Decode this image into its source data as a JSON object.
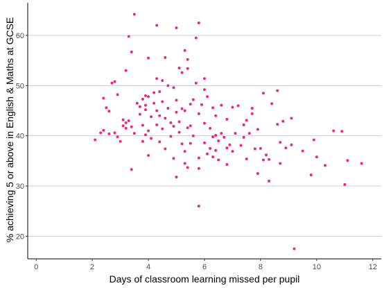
{
  "chart_data": {
    "type": "scatter",
    "title": "",
    "xlabel": "Days of classroom learning missed per pupil",
    "ylabel": "% achieving 5 or above in English & Maths at GCSE",
    "xlim": [
      -0.3,
      12.3
    ],
    "ylim": [
      15.5,
      66.5
    ],
    "x_ticks": [
      0,
      2,
      4,
      6,
      8,
      10,
      12
    ],
    "y_ticks": [
      20,
      30,
      40,
      50,
      60
    ],
    "grid": "horizontal major gridlines",
    "point_color": "#E7298A",
    "points": [
      {
        "x": 2.1,
        "y": 39.2
      },
      {
        "x": 2.3,
        "y": 40.6
      },
      {
        "x": 2.4,
        "y": 47.5
      },
      {
        "x": 2.4,
        "y": 41.1
      },
      {
        "x": 2.5,
        "y": 45.6
      },
      {
        "x": 2.6,
        "y": 44.9
      },
      {
        "x": 2.6,
        "y": 40.4
      },
      {
        "x": 2.7,
        "y": 50.5
      },
      {
        "x": 2.8,
        "y": 50.8
      },
      {
        "x": 2.8,
        "y": 40.6
      },
      {
        "x": 2.9,
        "y": 48.2
      },
      {
        "x": 2.9,
        "y": 39.8
      },
      {
        "x": 3.0,
        "y": 38.9
      },
      {
        "x": 3.1,
        "y": 42.0
      },
      {
        "x": 3.1,
        "y": 43.2
      },
      {
        "x": 3.2,
        "y": 53.0
      },
      {
        "x": 3.2,
        "y": 42.6
      },
      {
        "x": 3.2,
        "y": 41.5
      },
      {
        "x": 3.3,
        "y": 59.8
      },
      {
        "x": 3.3,
        "y": 43.0
      },
      {
        "x": 3.4,
        "y": 56.7
      },
      {
        "x": 3.4,
        "y": 41.8
      },
      {
        "x": 3.4,
        "y": 33.3
      },
      {
        "x": 3.5,
        "y": 64.2
      },
      {
        "x": 3.5,
        "y": 40.5
      },
      {
        "x": 3.6,
        "y": 46.5
      },
      {
        "x": 3.7,
        "y": 45.8
      },
      {
        "x": 3.7,
        "y": 44.3
      },
      {
        "x": 3.8,
        "y": 47.3
      },
      {
        "x": 3.8,
        "y": 42.1
      },
      {
        "x": 3.8,
        "y": 38.9
      },
      {
        "x": 3.9,
        "y": 48.0
      },
      {
        "x": 3.9,
        "y": 46.1
      },
      {
        "x": 3.9,
        "y": 45.2
      },
      {
        "x": 3.9,
        "y": 40.2
      },
      {
        "x": 4.0,
        "y": 55.5
      },
      {
        "x": 4.0,
        "y": 47.8
      },
      {
        "x": 4.0,
        "y": 41.0
      },
      {
        "x": 4.0,
        "y": 36.1
      },
      {
        "x": 4.1,
        "y": 43.8
      },
      {
        "x": 4.1,
        "y": 39.5
      },
      {
        "x": 4.2,
        "y": 48.6
      },
      {
        "x": 4.2,
        "y": 46.5
      },
      {
        "x": 4.3,
        "y": 62.0
      },
      {
        "x": 4.3,
        "y": 51.4
      },
      {
        "x": 4.3,
        "y": 45.0
      },
      {
        "x": 4.3,
        "y": 42.2
      },
      {
        "x": 4.4,
        "y": 48.8
      },
      {
        "x": 4.4,
        "y": 44.0
      },
      {
        "x": 4.4,
        "y": 38.8
      },
      {
        "x": 4.5,
        "y": 51.0
      },
      {
        "x": 4.5,
        "y": 46.8
      },
      {
        "x": 4.5,
        "y": 41.4
      },
      {
        "x": 4.6,
        "y": 55.6
      },
      {
        "x": 4.6,
        "y": 43.5
      },
      {
        "x": 4.6,
        "y": 37.4
      },
      {
        "x": 4.7,
        "y": 50.0
      },
      {
        "x": 4.7,
        "y": 45.5
      },
      {
        "x": 4.8,
        "y": 42.6
      },
      {
        "x": 4.8,
        "y": 39.9
      },
      {
        "x": 4.9,
        "y": 49.6
      },
      {
        "x": 4.9,
        "y": 41.9
      },
      {
        "x": 4.9,
        "y": 35.5
      },
      {
        "x": 5.0,
        "y": 61.5
      },
      {
        "x": 5.0,
        "y": 47.1
      },
      {
        "x": 5.0,
        "y": 44.7
      },
      {
        "x": 5.0,
        "y": 31.8
      },
      {
        "x": 5.1,
        "y": 53.5
      },
      {
        "x": 5.1,
        "y": 42.8
      },
      {
        "x": 5.1,
        "y": 40.7
      },
      {
        "x": 5.2,
        "y": 52.6
      },
      {
        "x": 5.2,
        "y": 45.4
      },
      {
        "x": 5.2,
        "y": 38.4
      },
      {
        "x": 5.3,
        "y": 57.0
      },
      {
        "x": 5.3,
        "y": 45.0
      },
      {
        "x": 5.3,
        "y": 36.9
      },
      {
        "x": 5.3,
        "y": 34.5
      },
      {
        "x": 5.4,
        "y": 55.2
      },
      {
        "x": 5.4,
        "y": 53.4
      },
      {
        "x": 5.4,
        "y": 41.6
      },
      {
        "x": 5.4,
        "y": 33.7
      },
      {
        "x": 5.5,
        "y": 46.3
      },
      {
        "x": 5.5,
        "y": 42.0
      },
      {
        "x": 5.5,
        "y": 38.5
      },
      {
        "x": 5.6,
        "y": 47.2
      },
      {
        "x": 5.6,
        "y": 40.0
      },
      {
        "x": 5.7,
        "y": 59.5
      },
      {
        "x": 5.7,
        "y": 50.5
      },
      {
        "x": 5.8,
        "y": 62.5
      },
      {
        "x": 5.8,
        "y": 44.4
      },
      {
        "x": 5.8,
        "y": 35.6
      },
      {
        "x": 5.8,
        "y": 33.5
      },
      {
        "x": 5.8,
        "y": 26.0
      },
      {
        "x": 5.9,
        "y": 46.2
      },
      {
        "x": 6.0,
        "y": 51.4
      },
      {
        "x": 6.0,
        "y": 49.2
      },
      {
        "x": 6.0,
        "y": 42.5
      },
      {
        "x": 6.0,
        "y": 38.6
      },
      {
        "x": 6.1,
        "y": 47.8
      },
      {
        "x": 6.1,
        "y": 36.4
      },
      {
        "x": 6.2,
        "y": 41.5
      },
      {
        "x": 6.2,
        "y": 37.5
      },
      {
        "x": 6.3,
        "y": 45.6
      },
      {
        "x": 6.3,
        "y": 39.8
      },
      {
        "x": 6.3,
        "y": 35.8
      },
      {
        "x": 6.4,
        "y": 44.0
      },
      {
        "x": 6.4,
        "y": 40.1
      },
      {
        "x": 6.4,
        "y": 37.1
      },
      {
        "x": 6.5,
        "y": 39.0
      },
      {
        "x": 6.5,
        "y": 35.2
      },
      {
        "x": 6.6,
        "y": 46.1
      },
      {
        "x": 6.6,
        "y": 40.5
      },
      {
        "x": 6.7,
        "y": 39.7
      },
      {
        "x": 6.8,
        "y": 43.3
      },
      {
        "x": 6.8,
        "y": 37.6
      },
      {
        "x": 6.8,
        "y": 34.3
      },
      {
        "x": 6.9,
        "y": 38.2
      },
      {
        "x": 7.0,
        "y": 45.7
      },
      {
        "x": 7.0,
        "y": 36.9
      },
      {
        "x": 7.1,
        "y": 40.5
      },
      {
        "x": 7.2,
        "y": 46.0
      },
      {
        "x": 7.3,
        "y": 38.1
      },
      {
        "x": 7.4,
        "y": 42.2
      },
      {
        "x": 7.4,
        "y": 39.7
      },
      {
        "x": 7.5,
        "y": 43.1
      },
      {
        "x": 7.5,
        "y": 35.4
      },
      {
        "x": 7.6,
        "y": 40.5
      },
      {
        "x": 7.7,
        "y": 45.5
      },
      {
        "x": 7.7,
        "y": 44.4
      },
      {
        "x": 7.8,
        "y": 37.4
      },
      {
        "x": 7.9,
        "y": 41.3
      },
      {
        "x": 7.9,
        "y": 32.5
      },
      {
        "x": 8.0,
        "y": 37.5
      },
      {
        "x": 8.1,
        "y": 48.5
      },
      {
        "x": 8.1,
        "y": 35.2
      },
      {
        "x": 8.2,
        "y": 36.2
      },
      {
        "x": 8.3,
        "y": 35.3
      },
      {
        "x": 8.3,
        "y": 31.0
      },
      {
        "x": 8.4,
        "y": 46.4
      },
      {
        "x": 8.6,
        "y": 49.0
      },
      {
        "x": 8.6,
        "y": 42.3
      },
      {
        "x": 8.7,
        "y": 38.7
      },
      {
        "x": 8.7,
        "y": 34.5
      },
      {
        "x": 8.8,
        "y": 42.9
      },
      {
        "x": 8.9,
        "y": 37.6
      },
      {
        "x": 9.1,
        "y": 43.5
      },
      {
        "x": 9.1,
        "y": 38.2
      },
      {
        "x": 9.2,
        "y": 17.5
      },
      {
        "x": 9.5,
        "y": 37.0
      },
      {
        "x": 9.8,
        "y": 32.2
      },
      {
        "x": 9.9,
        "y": 39.2
      },
      {
        "x": 10.0,
        "y": 35.8
      },
      {
        "x": 10.3,
        "y": 34.1
      },
      {
        "x": 10.6,
        "y": 41.0
      },
      {
        "x": 10.9,
        "y": 40.9
      },
      {
        "x": 11.0,
        "y": 30.3
      },
      {
        "x": 11.1,
        "y": 35.1
      },
      {
        "x": 11.6,
        "y": 34.5
      }
    ]
  }
}
